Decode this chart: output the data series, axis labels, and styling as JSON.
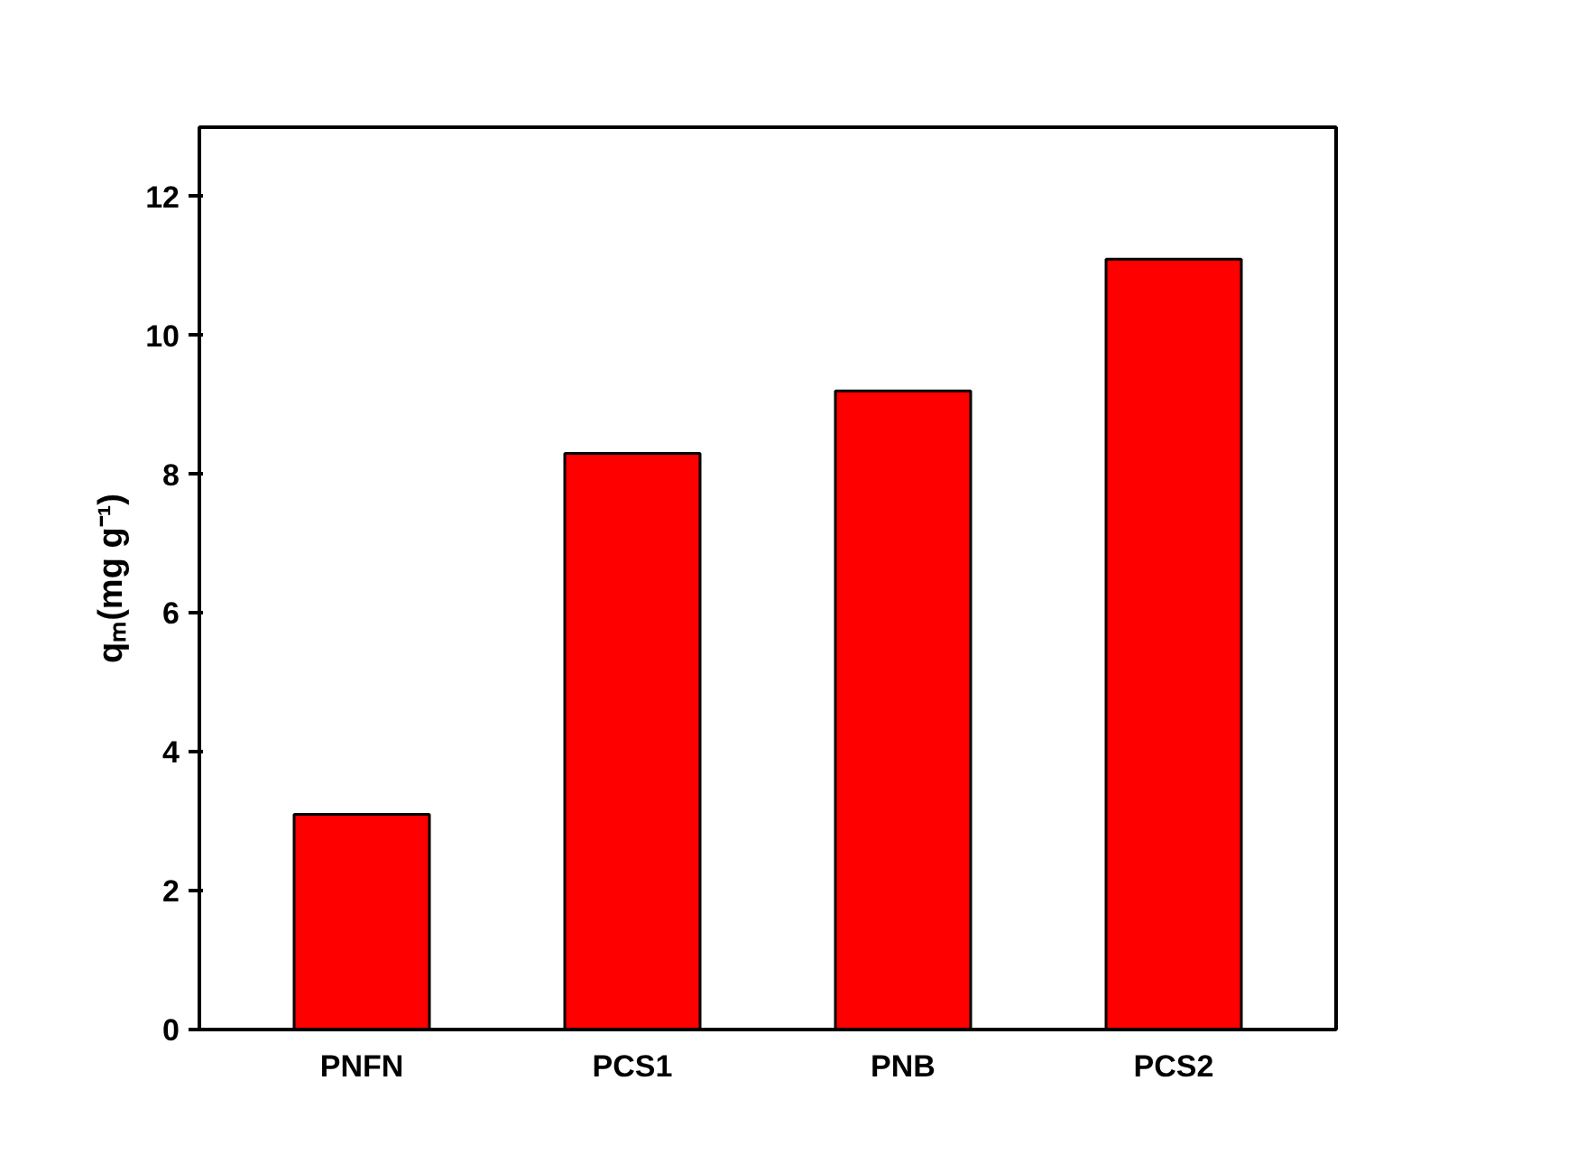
{
  "chart_data": {
    "type": "bar",
    "categories": [
      "PNFN",
      "PCS1",
      "PNB",
      "PCS2"
    ],
    "values": [
      3.1,
      8.3,
      9.2,
      11.1
    ],
    "color": "#ff0000",
    "ylabel": "qₘ(mg g⁻¹)",
    "ylim": [
      0,
      13
    ],
    "yticks": [
      0,
      2,
      4,
      6,
      8,
      10,
      12
    ],
    "grid": false
  }
}
